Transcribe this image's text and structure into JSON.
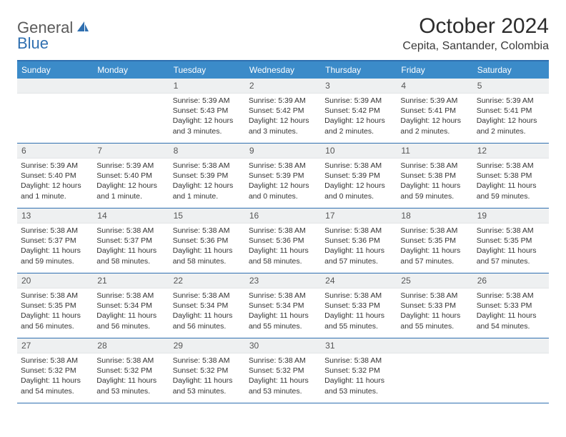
{
  "logo": {
    "text1": "General",
    "text2": "Blue"
  },
  "title": "October 2024",
  "location": "Cepita, Santander, Colombia",
  "colors": {
    "header_bar": "#3b8bc9",
    "rule": "#2f6fb0",
    "daynum_bg": "#eef0f1",
    "text": "#2c2c2c"
  },
  "day_names": [
    "Sunday",
    "Monday",
    "Tuesday",
    "Wednesday",
    "Thursday",
    "Friday",
    "Saturday"
  ],
  "weeks": [
    [
      {
        "n": "",
        "sr": "",
        "ss": "",
        "dl": ""
      },
      {
        "n": "",
        "sr": "",
        "ss": "",
        "dl": ""
      },
      {
        "n": "1",
        "sr": "Sunrise: 5:39 AM",
        "ss": "Sunset: 5:43 PM",
        "dl": "Daylight: 12 hours and 3 minutes."
      },
      {
        "n": "2",
        "sr": "Sunrise: 5:39 AM",
        "ss": "Sunset: 5:42 PM",
        "dl": "Daylight: 12 hours and 3 minutes."
      },
      {
        "n": "3",
        "sr": "Sunrise: 5:39 AM",
        "ss": "Sunset: 5:42 PM",
        "dl": "Daylight: 12 hours and 2 minutes."
      },
      {
        "n": "4",
        "sr": "Sunrise: 5:39 AM",
        "ss": "Sunset: 5:41 PM",
        "dl": "Daylight: 12 hours and 2 minutes."
      },
      {
        "n": "5",
        "sr": "Sunrise: 5:39 AM",
        "ss": "Sunset: 5:41 PM",
        "dl": "Daylight: 12 hours and 2 minutes."
      }
    ],
    [
      {
        "n": "6",
        "sr": "Sunrise: 5:39 AM",
        "ss": "Sunset: 5:40 PM",
        "dl": "Daylight: 12 hours and 1 minute."
      },
      {
        "n": "7",
        "sr": "Sunrise: 5:39 AM",
        "ss": "Sunset: 5:40 PM",
        "dl": "Daylight: 12 hours and 1 minute."
      },
      {
        "n": "8",
        "sr": "Sunrise: 5:38 AM",
        "ss": "Sunset: 5:39 PM",
        "dl": "Daylight: 12 hours and 1 minute."
      },
      {
        "n": "9",
        "sr": "Sunrise: 5:38 AM",
        "ss": "Sunset: 5:39 PM",
        "dl": "Daylight: 12 hours and 0 minutes."
      },
      {
        "n": "10",
        "sr": "Sunrise: 5:38 AM",
        "ss": "Sunset: 5:39 PM",
        "dl": "Daylight: 12 hours and 0 minutes."
      },
      {
        "n": "11",
        "sr": "Sunrise: 5:38 AM",
        "ss": "Sunset: 5:38 PM",
        "dl": "Daylight: 11 hours and 59 minutes."
      },
      {
        "n": "12",
        "sr": "Sunrise: 5:38 AM",
        "ss": "Sunset: 5:38 PM",
        "dl": "Daylight: 11 hours and 59 minutes."
      }
    ],
    [
      {
        "n": "13",
        "sr": "Sunrise: 5:38 AM",
        "ss": "Sunset: 5:37 PM",
        "dl": "Daylight: 11 hours and 59 minutes."
      },
      {
        "n": "14",
        "sr": "Sunrise: 5:38 AM",
        "ss": "Sunset: 5:37 PM",
        "dl": "Daylight: 11 hours and 58 minutes."
      },
      {
        "n": "15",
        "sr": "Sunrise: 5:38 AM",
        "ss": "Sunset: 5:36 PM",
        "dl": "Daylight: 11 hours and 58 minutes."
      },
      {
        "n": "16",
        "sr": "Sunrise: 5:38 AM",
        "ss": "Sunset: 5:36 PM",
        "dl": "Daylight: 11 hours and 58 minutes."
      },
      {
        "n": "17",
        "sr": "Sunrise: 5:38 AM",
        "ss": "Sunset: 5:36 PM",
        "dl": "Daylight: 11 hours and 57 minutes."
      },
      {
        "n": "18",
        "sr": "Sunrise: 5:38 AM",
        "ss": "Sunset: 5:35 PM",
        "dl": "Daylight: 11 hours and 57 minutes."
      },
      {
        "n": "19",
        "sr": "Sunrise: 5:38 AM",
        "ss": "Sunset: 5:35 PM",
        "dl": "Daylight: 11 hours and 57 minutes."
      }
    ],
    [
      {
        "n": "20",
        "sr": "Sunrise: 5:38 AM",
        "ss": "Sunset: 5:35 PM",
        "dl": "Daylight: 11 hours and 56 minutes."
      },
      {
        "n": "21",
        "sr": "Sunrise: 5:38 AM",
        "ss": "Sunset: 5:34 PM",
        "dl": "Daylight: 11 hours and 56 minutes."
      },
      {
        "n": "22",
        "sr": "Sunrise: 5:38 AM",
        "ss": "Sunset: 5:34 PM",
        "dl": "Daylight: 11 hours and 56 minutes."
      },
      {
        "n": "23",
        "sr": "Sunrise: 5:38 AM",
        "ss": "Sunset: 5:34 PM",
        "dl": "Daylight: 11 hours and 55 minutes."
      },
      {
        "n": "24",
        "sr": "Sunrise: 5:38 AM",
        "ss": "Sunset: 5:33 PM",
        "dl": "Daylight: 11 hours and 55 minutes."
      },
      {
        "n": "25",
        "sr": "Sunrise: 5:38 AM",
        "ss": "Sunset: 5:33 PM",
        "dl": "Daylight: 11 hours and 55 minutes."
      },
      {
        "n": "26",
        "sr": "Sunrise: 5:38 AM",
        "ss": "Sunset: 5:33 PM",
        "dl": "Daylight: 11 hours and 54 minutes."
      }
    ],
    [
      {
        "n": "27",
        "sr": "Sunrise: 5:38 AM",
        "ss": "Sunset: 5:32 PM",
        "dl": "Daylight: 11 hours and 54 minutes."
      },
      {
        "n": "28",
        "sr": "Sunrise: 5:38 AM",
        "ss": "Sunset: 5:32 PM",
        "dl": "Daylight: 11 hours and 53 minutes."
      },
      {
        "n": "29",
        "sr": "Sunrise: 5:38 AM",
        "ss": "Sunset: 5:32 PM",
        "dl": "Daylight: 11 hours and 53 minutes."
      },
      {
        "n": "30",
        "sr": "Sunrise: 5:38 AM",
        "ss": "Sunset: 5:32 PM",
        "dl": "Daylight: 11 hours and 53 minutes."
      },
      {
        "n": "31",
        "sr": "Sunrise: 5:38 AM",
        "ss": "Sunset: 5:32 PM",
        "dl": "Daylight: 11 hours and 53 minutes."
      },
      {
        "n": "",
        "sr": "",
        "ss": "",
        "dl": ""
      },
      {
        "n": "",
        "sr": "",
        "ss": "",
        "dl": ""
      }
    ]
  ]
}
